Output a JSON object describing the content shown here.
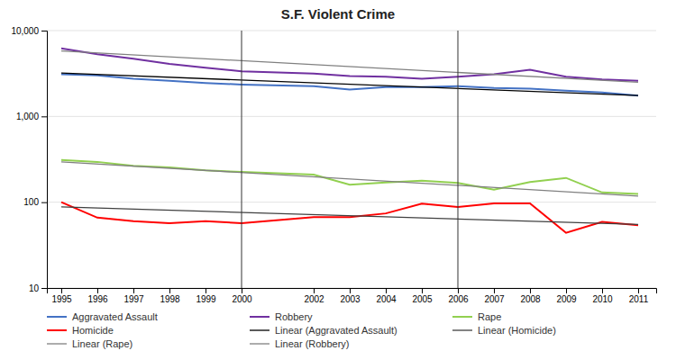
{
  "chart_data": {
    "type": "line",
    "title": "S.F. Violent Crime",
    "x": [
      1995,
      1996,
      1997,
      1998,
      1999,
      2000,
      2002,
      2003,
      2004,
      2005,
      2006,
      2007,
      2008,
      2009,
      2010,
      2011
    ],
    "series": [
      {
        "name": "Aggravated Assault",
        "color": "#4472C4",
        "values": [
          3100,
          3000,
          2750,
          2600,
          2450,
          2350,
          2250,
          2050,
          2200,
          2200,
          2250,
          2150,
          2100,
          2000,
          1900,
          1750
        ]
      },
      {
        "name": "Robbery",
        "color": "#7030A0",
        "values": [
          6200,
          5300,
          4700,
          4100,
          3700,
          3350,
          3150,
          2950,
          2900,
          2750,
          2900,
          3100,
          3500,
          2900,
          2700,
          2600
        ]
      },
      {
        "name": "Rape",
        "color": "#92D050",
        "values": [
          310,
          295,
          265,
          255,
          235,
          225,
          210,
          160,
          170,
          178,
          168,
          140,
          172,
          192,
          130,
          125
        ]
      },
      {
        "name": "Homicide",
        "color": "#FF0000",
        "values": [
          100,
          66,
          60,
          57,
          60,
          57,
          67,
          67,
          74,
          96,
          88,
          97,
          97,
          44,
          59,
          54
        ]
      },
      {
        "name": "Linear (Aggravated Assault)",
        "color": "#000000",
        "x": [
          1995,
          2011
        ],
        "values": [
          3200,
          1750
        ]
      },
      {
        "name": "Linear (Homicide)",
        "color": "#404040",
        "x": [
          1995,
          2011
        ],
        "values": [
          88,
          55
        ]
      },
      {
        "name": "Linear (Rape)",
        "color": "#808080",
        "x": [
          1995,
          2011
        ],
        "values": [
          295,
          118
        ]
      },
      {
        "name": "Linear (Robbery)",
        "color": "#808080",
        "x": [
          1995,
          2011
        ],
        "values": [
          5800,
          2500
        ]
      }
    ],
    "vlines": [
      2000,
      2006
    ],
    "xlim": [
      1994.6,
      2011.5
    ],
    "xticks": [
      1995,
      1996,
      1997,
      1998,
      1999,
      2000,
      2002,
      2003,
      2004,
      2005,
      2006,
      2007,
      2008,
      2009,
      2010,
      2011
    ],
    "ylim": [
      10,
      10000
    ],
    "yticks": [
      10,
      100,
      {
        "value": 1000,
        "label": "1,000"
      },
      {
        "value": 10000,
        "label": "10,000"
      }
    ],
    "log": "y",
    "grid": true,
    "legend": "bottom"
  }
}
